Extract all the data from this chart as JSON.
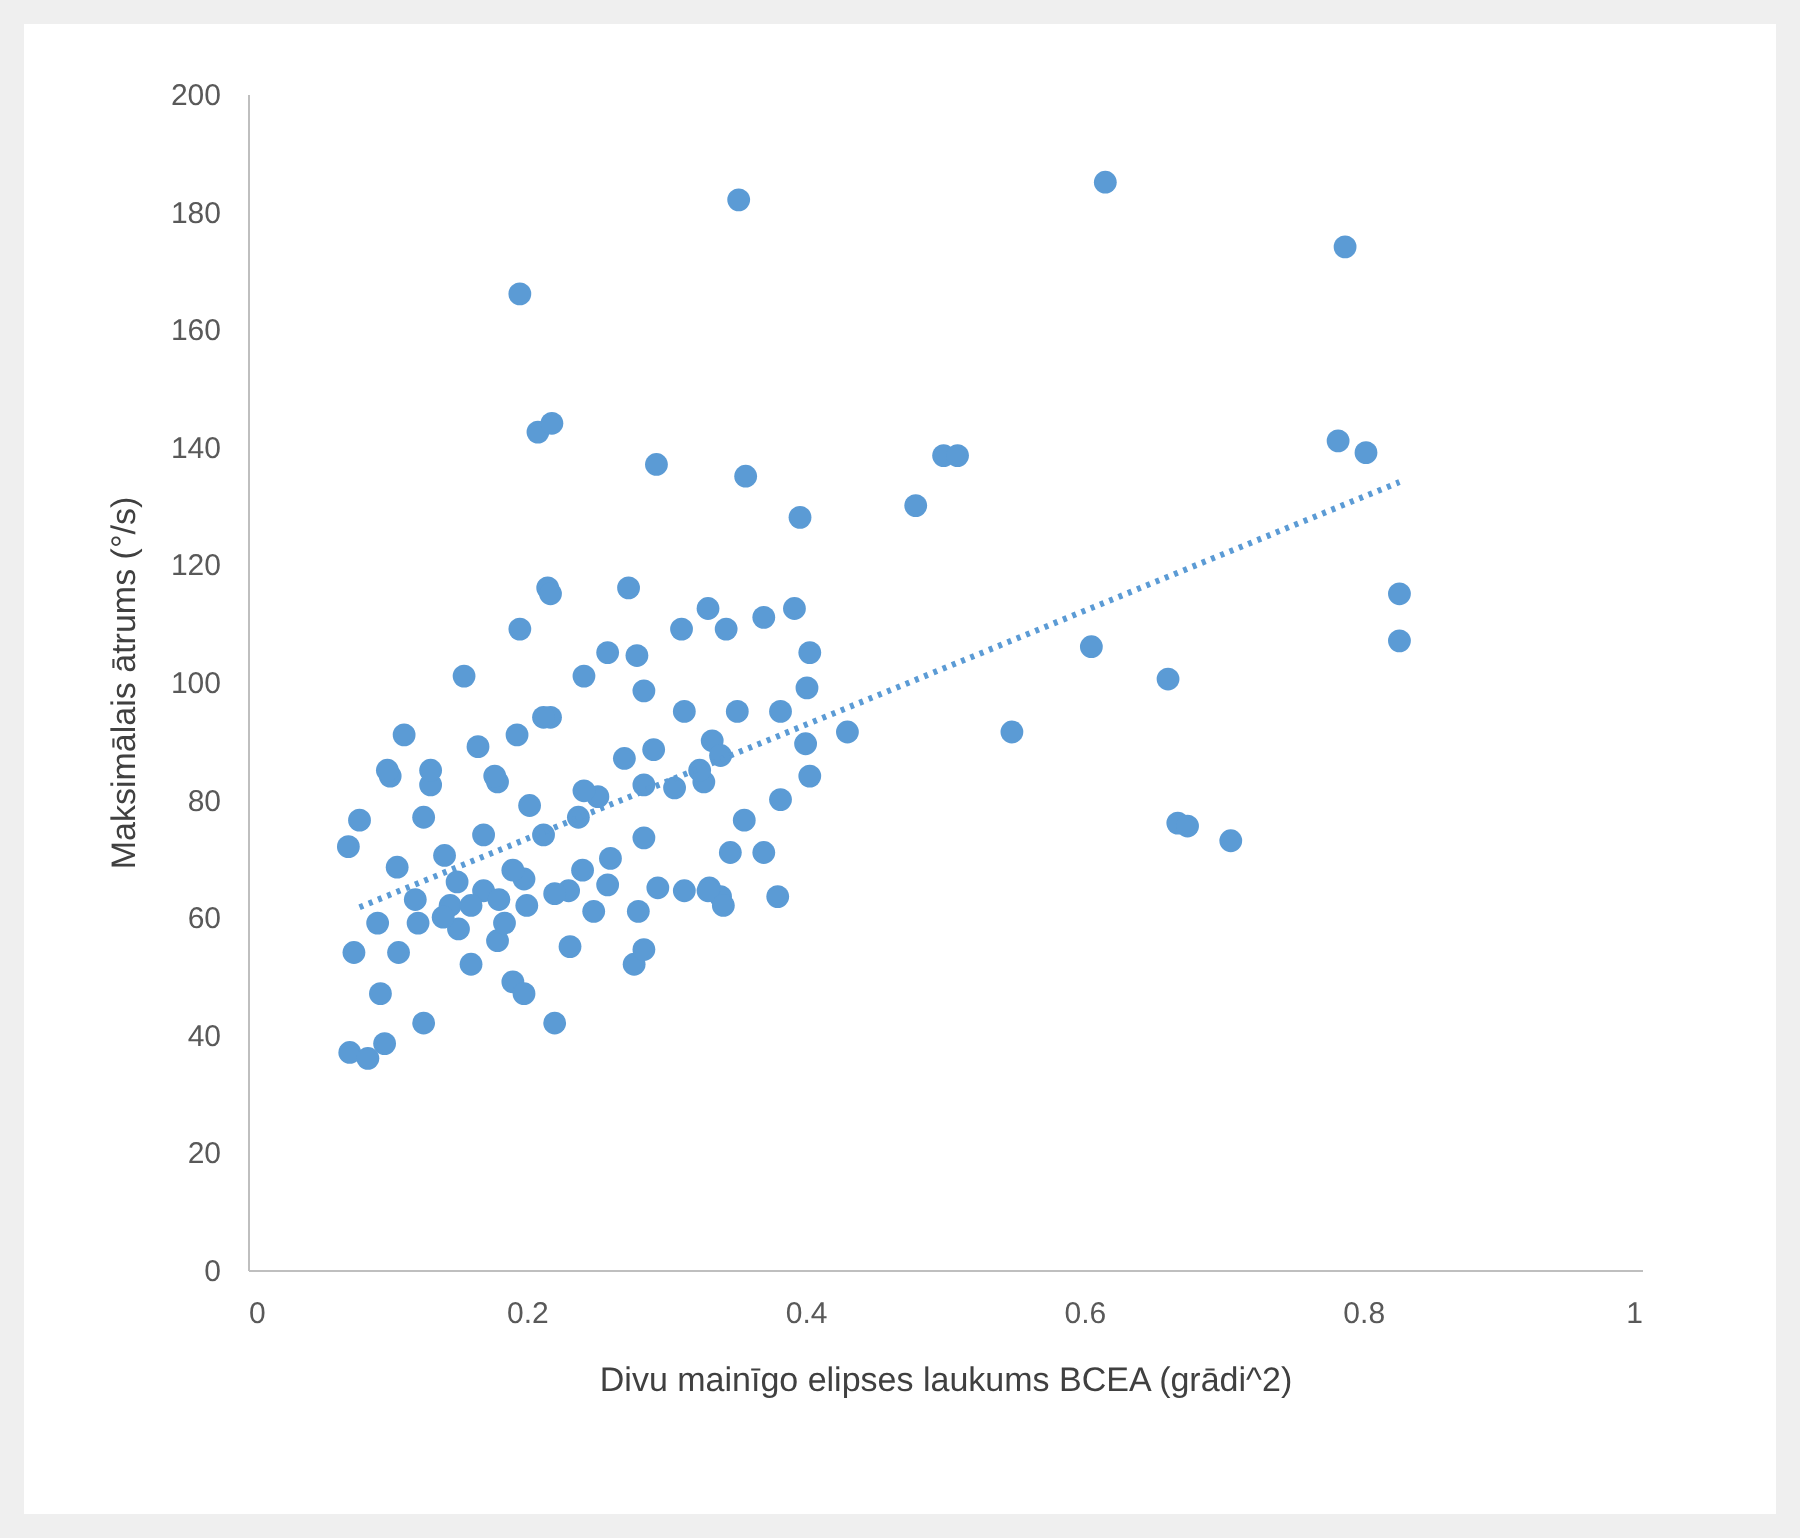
{
  "chart_data": {
    "type": "scatter",
    "xlabel": "Divu mainīgo elipses laukums BCEA (grādi^2)",
    "ylabel": "Maksimālais ātrums (°/s)",
    "xlim": [
      0,
      1
    ],
    "ylim": [
      0,
      200
    ],
    "xticks": [
      0,
      0.2,
      0.4,
      0.6,
      0.8,
      1
    ],
    "yticks": [
      0,
      20,
      40,
      60,
      80,
      100,
      120,
      140,
      160,
      180,
      200
    ],
    "grid": false,
    "marker": "circle",
    "series": [
      {
        "color": "#5b9bd5",
        "x": [
          0.195,
          0.352,
          0.615,
          0.787,
          0.208,
          0.218,
          0.293,
          0.357,
          0.396,
          0.479,
          0.499,
          0.509,
          0.782,
          0.802,
          0.826,
          0.826,
          0.215,
          0.195,
          0.273,
          0.311,
          0.33,
          0.343,
          0.37,
          0.392,
          0.605,
          0.66,
          0.548,
          0.43,
          0.667,
          0.674,
          0.705,
          0.08,
          0.072,
          0.076,
          0.073,
          0.086,
          0.098,
          0.126,
          0.22,
          0.095,
          0.16,
          0.19,
          0.198,
          0.277,
          0.38,
          0.339,
          0.331,
          0.346,
          0.37,
          0.356,
          0.382,
          0.403,
          0.284,
          0.294,
          0.28,
          0.231,
          0.179,
          0.108,
          0.126,
          0.131,
          0.102,
          0.179,
          0.202,
          0.237,
          0.251,
          0.212,
          0.169,
          0.141,
          0.107,
          0.093,
          0.122,
          0.145,
          0.169,
          0.198,
          0.23,
          0.258,
          0.248,
          0.184,
          0.151,
          0.313,
          0.306,
          0.327,
          0.217,
          0.403,
          0.401,
          0.241,
          0.258,
          0.279,
          0.284,
          0.217,
          0.313,
          0.351,
          0.382,
          0.333,
          0.339,
          0.324,
          0.4,
          0.27,
          0.291,
          0.284,
          0.241,
          0.33,
          0.341,
          0.284,
          0.155,
          0.112,
          0.1,
          0.131,
          0.165,
          0.193,
          0.212,
          0.177,
          0.14,
          0.16,
          0.18,
          0.2,
          0.22,
          0.15,
          0.19,
          0.12,
          0.24,
          0.26
        ],
        "values": [
          166,
          182,
          185,
          174,
          142.5,
          144,
          137,
          135,
          128,
          130,
          138.5,
          138.5,
          141,
          139,
          115,
          107,
          116,
          109,
          116,
          109,
          112.5,
          109,
          111,
          112.5,
          106,
          100.5,
          91.5,
          91.5,
          76,
          75.5,
          73,
          76.5,
          72,
          54,
          37,
          36,
          38.5,
          42,
          42,
          47,
          52,
          49,
          47,
          52,
          63.5,
          63.5,
          65,
          71,
          71,
          76.5,
          80,
          84,
          73.5,
          65,
          61,
          55,
          56,
          54,
          77,
          82.5,
          84,
          83,
          79,
          77,
          80.5,
          74,
          74,
          70.5,
          68.5,
          59,
          59,
          62,
          64.5,
          66.5,
          64.5,
          65.5,
          61,
          59,
          58,
          64.5,
          82,
          83,
          115,
          105,
          99,
          101,
          105,
          104.5,
          98.5,
          94,
          95,
          95,
          95,
          90,
          87.5,
          85,
          89.5,
          87,
          88.5,
          82.5,
          81.5,
          64.5,
          62,
          54.5,
          101,
          91,
          85,
          85,
          89,
          91,
          94,
          84,
          60,
          62,
          63,
          62,
          64,
          66,
          68,
          63,
          68,
          70
        ]
      },
      {
        "type": "line",
        "color": "#5b9bd5",
        "line_style": "dotted",
        "marker": "none",
        "x": [
          0.08,
          0.826
        ],
        "values": [
          61.7,
          134
        ]
      }
    ]
  }
}
